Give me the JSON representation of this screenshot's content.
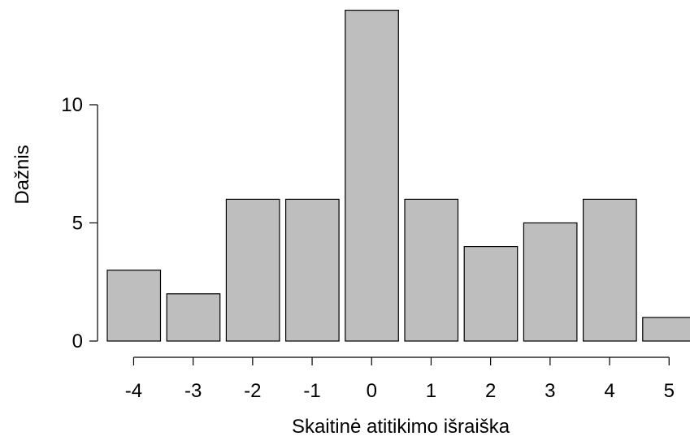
{
  "chart_data": {
    "type": "bar",
    "categories": [
      "-4",
      "-3",
      "-2",
      "-1",
      "0",
      "1",
      "2",
      "3",
      "4",
      "5"
    ],
    "values": [
      3,
      2,
      6,
      6,
      14,
      6,
      4,
      5,
      6,
      1
    ],
    "xlabel": "Skaitinė atitikimo išraiška",
    "ylabel": "Dažnis",
    "ylim": [
      0,
      14
    ],
    "y_ticks": [
      "0",
      "5",
      "10"
    ],
    "bar_color": "#bebebe",
    "grid": false
  }
}
